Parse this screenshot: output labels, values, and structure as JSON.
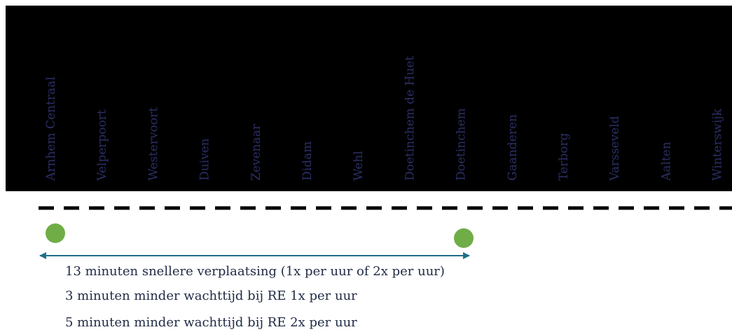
{
  "stations": [
    "Arnhem Centraal",
    "Velperpoort",
    "Westervoort",
    "Duiven",
    "Zevenaar",
    "Didam",
    "Wehl",
    "Doetinchem de Huet",
    "Doetinchem",
    "Gaanderen",
    "Terborg",
    "Varsseveld",
    "Aalten",
    "Winterswijk"
  ],
  "notes": [
    "13 minuten snellere verplaatsing (1x per uur of 2x per uur)",
    "3 minuten minder wachttijd bij RE 1x per uur",
    "5 minuten minder wachttijd bij RE 2x per uur"
  ]
}
